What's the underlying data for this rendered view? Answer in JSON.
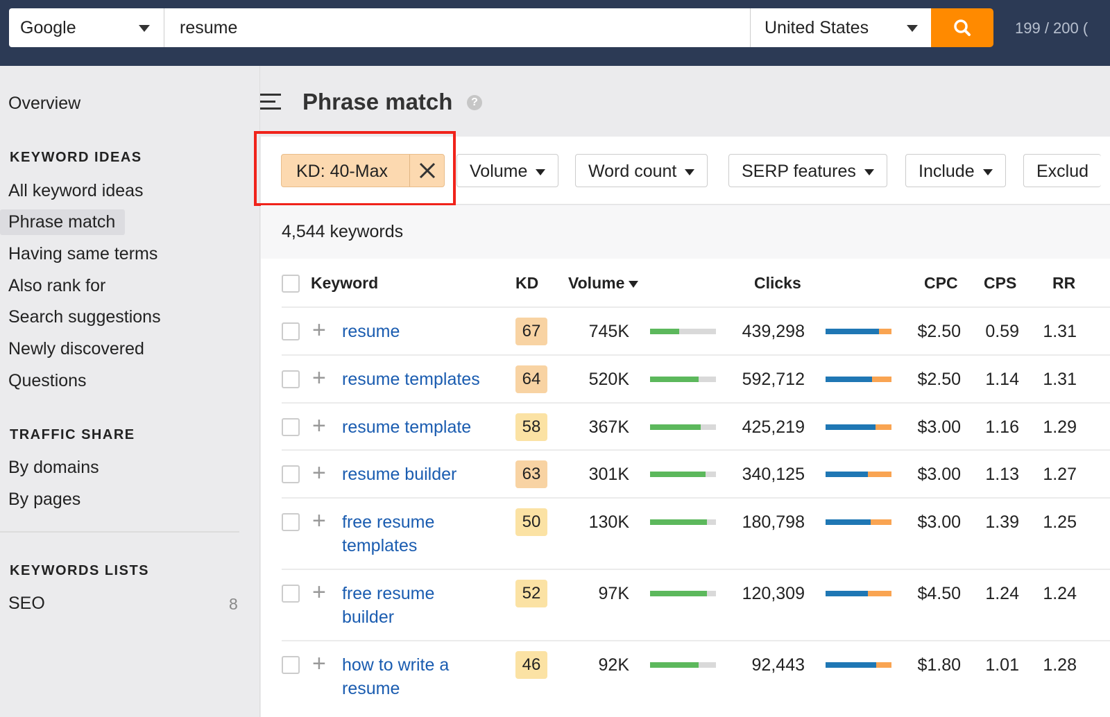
{
  "topbar": {
    "engine": "Google",
    "query": "resume",
    "country": "United States",
    "credits": "199 / 200 ("
  },
  "sidebar": {
    "overview": "Overview",
    "sections": [
      {
        "heading": "KEYWORD IDEAS",
        "items": [
          "All keyword ideas",
          "Phrase match",
          "Having same terms",
          "Also rank for",
          "Search suggestions",
          "Newly discovered",
          "Questions"
        ]
      },
      {
        "heading": "TRAFFIC SHARE",
        "items": [
          "By domains",
          "By pages"
        ]
      },
      {
        "heading": "KEYWORDS LISTS",
        "items": [
          "SEO"
        ]
      }
    ],
    "active": "Phrase match",
    "list_count": "8"
  },
  "main": {
    "title": "Phrase match",
    "filters": {
      "kd_chip": "KD: 40-Max",
      "buttons": [
        "Volume",
        "Word count",
        "SERP features",
        "Include",
        "Exclud"
      ]
    },
    "count": "4,544 keywords",
    "columns": [
      "Keyword",
      "KD",
      "Volume",
      "Clicks",
      "CPC",
      "CPS",
      "RR"
    ],
    "sort_column": "Volume",
    "colors": {
      "accent": "#ff8a00",
      "highlight": "#f0231b",
      "volume_bar": "#5cb85c",
      "clicks_paid": "#f9a452",
      "clicks_organic": "#1f77b4"
    },
    "rows": [
      {
        "keyword": [
          "resume"
        ],
        "kd": "67",
        "volume": "745K",
        "volume_fill": 0.44,
        "clicks": "439,298",
        "clicks_organic": 0.81,
        "cpc": "$2.50",
        "cps": "0.59",
        "rr": "1.31"
      },
      {
        "keyword": [
          "resume templates"
        ],
        "kd": "64",
        "volume": "520K",
        "volume_fill": 0.74,
        "clicks": "592,712",
        "clicks_organic": 0.7,
        "cpc": "$2.50",
        "cps": "1.14",
        "rr": "1.31"
      },
      {
        "keyword": [
          "resume template"
        ],
        "kd": "58",
        "volume": "367K",
        "volume_fill": 0.77,
        "clicks": "425,219",
        "clicks_organic": 0.76,
        "cpc": "$3.00",
        "cps": "1.16",
        "rr": "1.29"
      },
      {
        "keyword": [
          "resume builder"
        ],
        "kd": "63",
        "volume": "301K",
        "volume_fill": 0.84,
        "clicks": "340,125",
        "clicks_organic": 0.64,
        "cpc": "$3.00",
        "cps": "1.13",
        "rr": "1.27"
      },
      {
        "keyword": [
          "free resume",
          "templates"
        ],
        "kd": "50",
        "volume": "130K",
        "volume_fill": 0.86,
        "clicks": "180,798",
        "clicks_organic": 0.68,
        "cpc": "$3.00",
        "cps": "1.39",
        "rr": "1.25"
      },
      {
        "keyword": [
          "free resume",
          "builder"
        ],
        "kd": "52",
        "volume": "97K",
        "volume_fill": 0.86,
        "clicks": "120,309",
        "clicks_organic": 0.64,
        "cpc": "$4.50",
        "cps": "1.24",
        "rr": "1.24"
      },
      {
        "keyword": [
          "how to write a",
          "resume"
        ],
        "kd": "46",
        "volume": "92K",
        "volume_fill": 0.74,
        "clicks": "92,443",
        "clicks_organic": 0.77,
        "cpc": "$1.80",
        "cps": "1.01",
        "rr": "1.28"
      }
    ]
  }
}
